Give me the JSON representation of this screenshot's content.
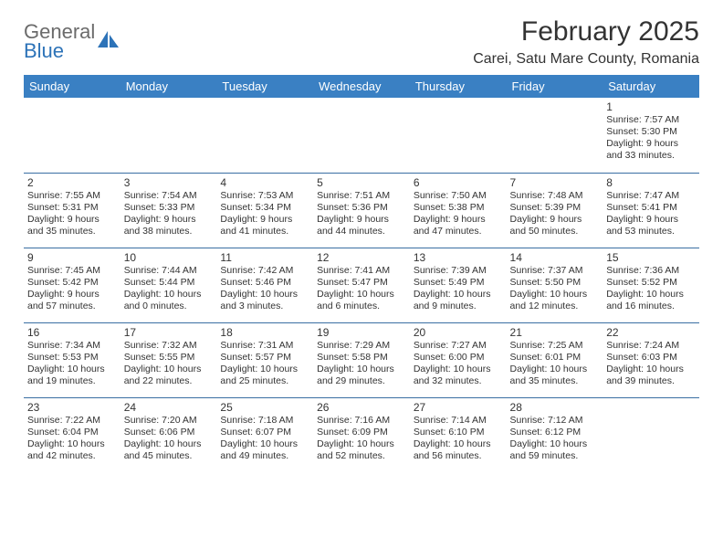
{
  "brand": {
    "line1": "General",
    "line2": "Blue"
  },
  "title": "February 2025",
  "location": "Carei, Satu Mare County, Romania",
  "colors": {
    "header_bg": "#3a80c3",
    "header_text": "#ffffff",
    "cell_border": "#3a6fa3",
    "text": "#333333",
    "logo_gray": "#6b6b6b",
    "logo_blue": "#2d73b8",
    "page_bg": "#ffffff"
  },
  "typography": {
    "title_fontsize": 30,
    "location_fontsize": 16,
    "dayheader_fontsize": 13,
    "daynum_fontsize": 12,
    "cell_fontsize": 10.5
  },
  "day_headers": [
    "Sunday",
    "Monday",
    "Tuesday",
    "Wednesday",
    "Thursday",
    "Friday",
    "Saturday"
  ],
  "weeks": [
    [
      null,
      null,
      null,
      null,
      null,
      null,
      {
        "n": "1",
        "sunrise": "7:57 AM",
        "sunset": "5:30 PM",
        "day_h": 9,
        "day_m": 33
      }
    ],
    [
      {
        "n": "2",
        "sunrise": "7:55 AM",
        "sunset": "5:31 PM",
        "day_h": 9,
        "day_m": 35
      },
      {
        "n": "3",
        "sunrise": "7:54 AM",
        "sunset": "5:33 PM",
        "day_h": 9,
        "day_m": 38
      },
      {
        "n": "4",
        "sunrise": "7:53 AM",
        "sunset": "5:34 PM",
        "day_h": 9,
        "day_m": 41
      },
      {
        "n": "5",
        "sunrise": "7:51 AM",
        "sunset": "5:36 PM",
        "day_h": 9,
        "day_m": 44
      },
      {
        "n": "6",
        "sunrise": "7:50 AM",
        "sunset": "5:38 PM",
        "day_h": 9,
        "day_m": 47
      },
      {
        "n": "7",
        "sunrise": "7:48 AM",
        "sunset": "5:39 PM",
        "day_h": 9,
        "day_m": 50
      },
      {
        "n": "8",
        "sunrise": "7:47 AM",
        "sunset": "5:41 PM",
        "day_h": 9,
        "day_m": 53
      }
    ],
    [
      {
        "n": "9",
        "sunrise": "7:45 AM",
        "sunset": "5:42 PM",
        "day_h": 9,
        "day_m": 57
      },
      {
        "n": "10",
        "sunrise": "7:44 AM",
        "sunset": "5:44 PM",
        "day_h": 10,
        "day_m": 0
      },
      {
        "n": "11",
        "sunrise": "7:42 AM",
        "sunset": "5:46 PM",
        "day_h": 10,
        "day_m": 3
      },
      {
        "n": "12",
        "sunrise": "7:41 AM",
        "sunset": "5:47 PM",
        "day_h": 10,
        "day_m": 6
      },
      {
        "n": "13",
        "sunrise": "7:39 AM",
        "sunset": "5:49 PM",
        "day_h": 10,
        "day_m": 9
      },
      {
        "n": "14",
        "sunrise": "7:37 AM",
        "sunset": "5:50 PM",
        "day_h": 10,
        "day_m": 12
      },
      {
        "n": "15",
        "sunrise": "7:36 AM",
        "sunset": "5:52 PM",
        "day_h": 10,
        "day_m": 16
      }
    ],
    [
      {
        "n": "16",
        "sunrise": "7:34 AM",
        "sunset": "5:53 PM",
        "day_h": 10,
        "day_m": 19
      },
      {
        "n": "17",
        "sunrise": "7:32 AM",
        "sunset": "5:55 PM",
        "day_h": 10,
        "day_m": 22
      },
      {
        "n": "18",
        "sunrise": "7:31 AM",
        "sunset": "5:57 PM",
        "day_h": 10,
        "day_m": 25
      },
      {
        "n": "19",
        "sunrise": "7:29 AM",
        "sunset": "5:58 PM",
        "day_h": 10,
        "day_m": 29
      },
      {
        "n": "20",
        "sunrise": "7:27 AM",
        "sunset": "6:00 PM",
        "day_h": 10,
        "day_m": 32
      },
      {
        "n": "21",
        "sunrise": "7:25 AM",
        "sunset": "6:01 PM",
        "day_h": 10,
        "day_m": 35
      },
      {
        "n": "22",
        "sunrise": "7:24 AM",
        "sunset": "6:03 PM",
        "day_h": 10,
        "day_m": 39
      }
    ],
    [
      {
        "n": "23",
        "sunrise": "7:22 AM",
        "sunset": "6:04 PM",
        "day_h": 10,
        "day_m": 42
      },
      {
        "n": "24",
        "sunrise": "7:20 AM",
        "sunset": "6:06 PM",
        "day_h": 10,
        "day_m": 45
      },
      {
        "n": "25",
        "sunrise": "7:18 AM",
        "sunset": "6:07 PM",
        "day_h": 10,
        "day_m": 49
      },
      {
        "n": "26",
        "sunrise": "7:16 AM",
        "sunset": "6:09 PM",
        "day_h": 10,
        "day_m": 52
      },
      {
        "n": "27",
        "sunrise": "7:14 AM",
        "sunset": "6:10 PM",
        "day_h": 10,
        "day_m": 56
      },
      {
        "n": "28",
        "sunrise": "7:12 AM",
        "sunset": "6:12 PM",
        "day_h": 10,
        "day_m": 59
      },
      null
    ]
  ],
  "labels": {
    "sunrise": "Sunrise:",
    "sunset": "Sunset:",
    "daylight": "Daylight:",
    "hours": "hours",
    "and": "and",
    "minutes": "minutes."
  }
}
